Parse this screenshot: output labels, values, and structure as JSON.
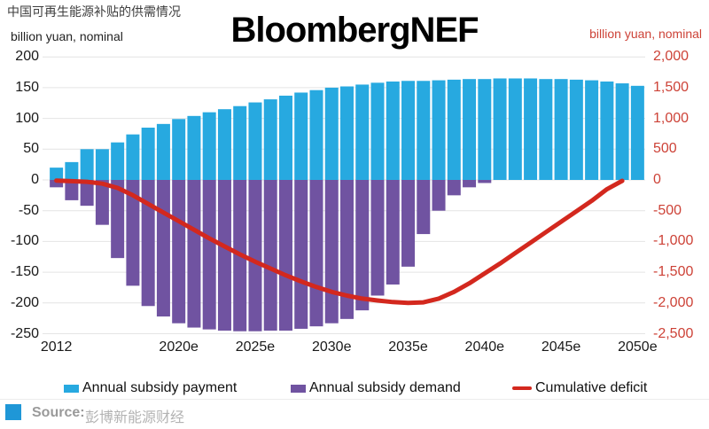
{
  "title_cn": "中国可再生能源补贴的供需情况",
  "watermark": "BloombergNEF",
  "left_axis_label": "billion yuan, nominal",
  "right_axis_label": "billion yuan, nominal",
  "legend": [
    {
      "label": "Annual subsidy payment",
      "color": "#27a9e0",
      "swatch": "rect"
    },
    {
      "label": "Annual subsidy demand",
      "color": "#7053a1",
      "swatch": "rect"
    },
    {
      "label": "Cumulative deficit",
      "color": "#d3281e",
      "swatch": "line"
    }
  ],
  "source": {
    "prefix": "Source:",
    "text": "彭博新能源财经"
  },
  "colors": {
    "payment_bar": "#27a9e0",
    "demand_bar": "#7053a1",
    "deficit_line": "#d3281e",
    "right_axis_text": "#cd4237",
    "gridline": "#e4e4e4",
    "source_logo_blue": "#1f97d7"
  },
  "chart_data": {
    "type": "bar",
    "title": "中国可再生能源补贴的供需情况",
    "xlabel": "",
    "ylabel_left": "billion yuan, nominal",
    "ylabel_right": "billion yuan, nominal",
    "left_ylim": [
      -250,
      200
    ],
    "right_ylim": [
      -2500,
      2000
    ],
    "grid": true,
    "legend_position": "bottom",
    "years": [
      2012,
      2013,
      2014,
      2015,
      2016,
      2017,
      2018,
      2019,
      2020,
      2021,
      2022,
      2023,
      2024,
      2025,
      2026,
      2027,
      2028,
      2029,
      2030,
      2031,
      2032,
      2033,
      2034,
      2035,
      2036,
      2037,
      2038,
      2039,
      2040,
      2041,
      2042,
      2043,
      2044,
      2045,
      2046,
      2047,
      2048,
      2049,
      2050
    ],
    "left_ticks": {
      "values": [
        200,
        150,
        100,
        50,
        0,
        -50,
        -100,
        -150,
        -200,
        -250
      ],
      "labels": [
        "200",
        "150",
        "100",
        "50",
        "0",
        "-50",
        "-100",
        "-150",
        "-200",
        "-250"
      ]
    },
    "right_ticks": {
      "values": [
        2000,
        1500,
        1000,
        500,
        0,
        -500,
        -1000,
        -1500,
        -2000,
        -2500
      ],
      "labels": [
        "2,000",
        "1,500",
        "1,000",
        "500",
        "0",
        "-500",
        "-1,000",
        "-1,500",
        "-2,000",
        "-2,500"
      ]
    },
    "x_ticks": [
      {
        "year": 2012,
        "label": "2012"
      },
      {
        "year": 2020,
        "label": "2020e"
      },
      {
        "year": 2025,
        "label": "2025e"
      },
      {
        "year": 2030,
        "label": "2030e"
      },
      {
        "year": 2035,
        "label": "2035e"
      },
      {
        "year": 2040,
        "label": "2040e"
      },
      {
        "year": 2045,
        "label": "2045e"
      },
      {
        "year": 2050,
        "label": "2050e"
      }
    ],
    "series": [
      {
        "name": "Annual subsidy payment",
        "type": "bar",
        "axis": "left",
        "color": "#27a9e0",
        "values": [
          20,
          29,
          50,
          50,
          61,
          74,
          85,
          91,
          99,
          104,
          110,
          115,
          120,
          126,
          131,
          137,
          142,
          146,
          150,
          152,
          155,
          158,
          160,
          161,
          161,
          162,
          163,
          164,
          164,
          165,
          165,
          165,
          164,
          164,
          163,
          162,
          160,
          157,
          153
        ]
      },
      {
        "name": "Annual subsidy demand",
        "type": "bar",
        "axis": "left",
        "color": "#7053a1",
        "values": [
          -12,
          -33,
          -42,
          -73,
          -127,
          -172,
          -205,
          -222,
          -233,
          -240,
          -243,
          -245,
          -246,
          -246,
          -245,
          -245,
          -242,
          -238,
          -233,
          -226,
          -212,
          -188,
          -170,
          -141,
          -88,
          -50,
          -25,
          -12,
          -5,
          0,
          0,
          0,
          0,
          0,
          0,
          0,
          0,
          0,
          0
        ]
      },
      {
        "name": "Cumulative deficit",
        "type": "line",
        "axis": "right",
        "color": "#d3281e",
        "values": [
          -10,
          -20,
          -30,
          -60,
          -130,
          -250,
          -390,
          -530,
          -670,
          -810,
          -950,
          -1080,
          -1210,
          -1330,
          -1440,
          -1550,
          -1650,
          -1740,
          -1820,
          -1880,
          -1930,
          -1960,
          -1985,
          -2000,
          -1990,
          -1930,
          -1820,
          -1680,
          -1520,
          -1360,
          -1190,
          -1020,
          -850,
          -680,
          -510,
          -340,
          -150,
          -15,
          null
        ]
      }
    ]
  }
}
